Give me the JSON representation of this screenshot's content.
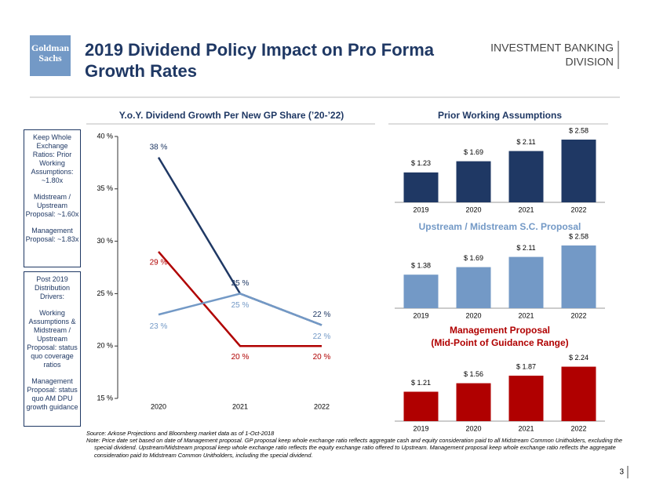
{
  "header": {
    "logo": [
      "Goldman",
      "Sachs"
    ],
    "title": [
      "2019 Dividend Policy Impact on Pro Forma",
      "Growth Rates"
    ],
    "division": [
      "INVESTMENT BANKING",
      "DIVISION"
    ]
  },
  "sidebar": [
    {
      "paragraphs": [
        "Keep Whole Exchange Ratios: Prior Working Assumptions: ~1.80x",
        "Midstream / Upstream Proposal: ~1.60x",
        "Management Proposal: ~1.83x"
      ]
    },
    {
      "paragraphs": [
        "Post 2019 Distribution Drivers:",
        "Working Assumptions & Midstream / Upstream Proposal: status quo coverage ratios",
        "Management Proposal: status quo AM DPU growth guidance"
      ]
    }
  ],
  "chart_data": [
    {
      "type": "line",
      "title": "Y.o.Y. Dividend Growth Per New GP Share (’20-’22)",
      "categories": [
        "2020",
        "2021",
        "2022"
      ],
      "series": [
        {
          "color": "#1f3864",
          "values": [
            38,
            25,
            22
          ],
          "value_labels": [
            "38 %",
            "25 %",
            "22 %"
          ]
        },
        {
          "color": "#b00000",
          "values": [
            29,
            20,
            20
          ],
          "value_labels": [
            "29 %",
            "20 %",
            "20 %"
          ]
        },
        {
          "color": "#7399c6",
          "values": [
            23,
            25,
            22
          ],
          "value_labels": [
            "23 %",
            "25 %",
            "22 %"
          ]
        }
      ],
      "ylim": [
        15,
        40
      ],
      "yticks": [
        {
          "value": 15,
          "label": "15 %"
        },
        {
          "value": 20,
          "label": "20 %"
        },
        {
          "value": 25,
          "label": "25 %"
        },
        {
          "value": 30,
          "label": "30 %"
        },
        {
          "value": 35,
          "label": "35 %"
        },
        {
          "value": 40,
          "label": "40 %"
        }
      ]
    },
    {
      "type": "bar",
      "title": "Prior Working Assumptions",
      "title_color": "#1f3864",
      "color": "#1f3864",
      "categories": [
        "2019",
        "2020",
        "2021",
        "2022"
      ],
      "values": [
        1.23,
        1.69,
        2.11,
        2.58
      ],
      "value_labels": [
        "$ 1.23",
        "$ 1.69",
        "$ 2.11",
        "$ 2.58"
      ]
    },
    {
      "type": "bar",
      "title": "Upstream / Midstream S.C. Proposal",
      "title_color": "#7399c6",
      "color": "#7399c6",
      "categories": [
        "2019",
        "2020",
        "2021",
        "2022"
      ],
      "values": [
        1.38,
        1.69,
        2.11,
        2.58
      ],
      "value_labels": [
        "$ 1.38",
        "$ 1.69",
        "$ 2.11",
        "$ 2.58"
      ]
    },
    {
      "type": "bar",
      "title": "Management Proposal",
      "subtitle": "(Mid-Point of Guidance Range)",
      "title_color": "#b00000",
      "color": "#b00000",
      "categories": [
        "2019",
        "2020",
        "2021",
        "2022"
      ],
      "values": [
        1.21,
        1.56,
        1.87,
        2.24
      ],
      "value_labels": [
        "$ 1.21",
        "$ 1.56",
        "$ 1.87",
        "$ 2.24"
      ]
    }
  ],
  "footnotes": {
    "source": "Source: Arkose Projections and Bloomberg market data as of 1-Oct-2018",
    "note": "Note: Price date set based on date of Management proposal. GP proposal keep whole exchange ratio reflects aggregate cash and equity consideration paid to all Midstream Common Unitholders, excluding the special dividend. Upstream/Midstream proposal keep whole exchange ratio reflects the equity exchange ratio offered to Upstream. Management proposal keep whole exchange ratio reflects the aggregate consideration paid to Midstream Common Unitholders, including the special dividend."
  },
  "page_number": "3"
}
